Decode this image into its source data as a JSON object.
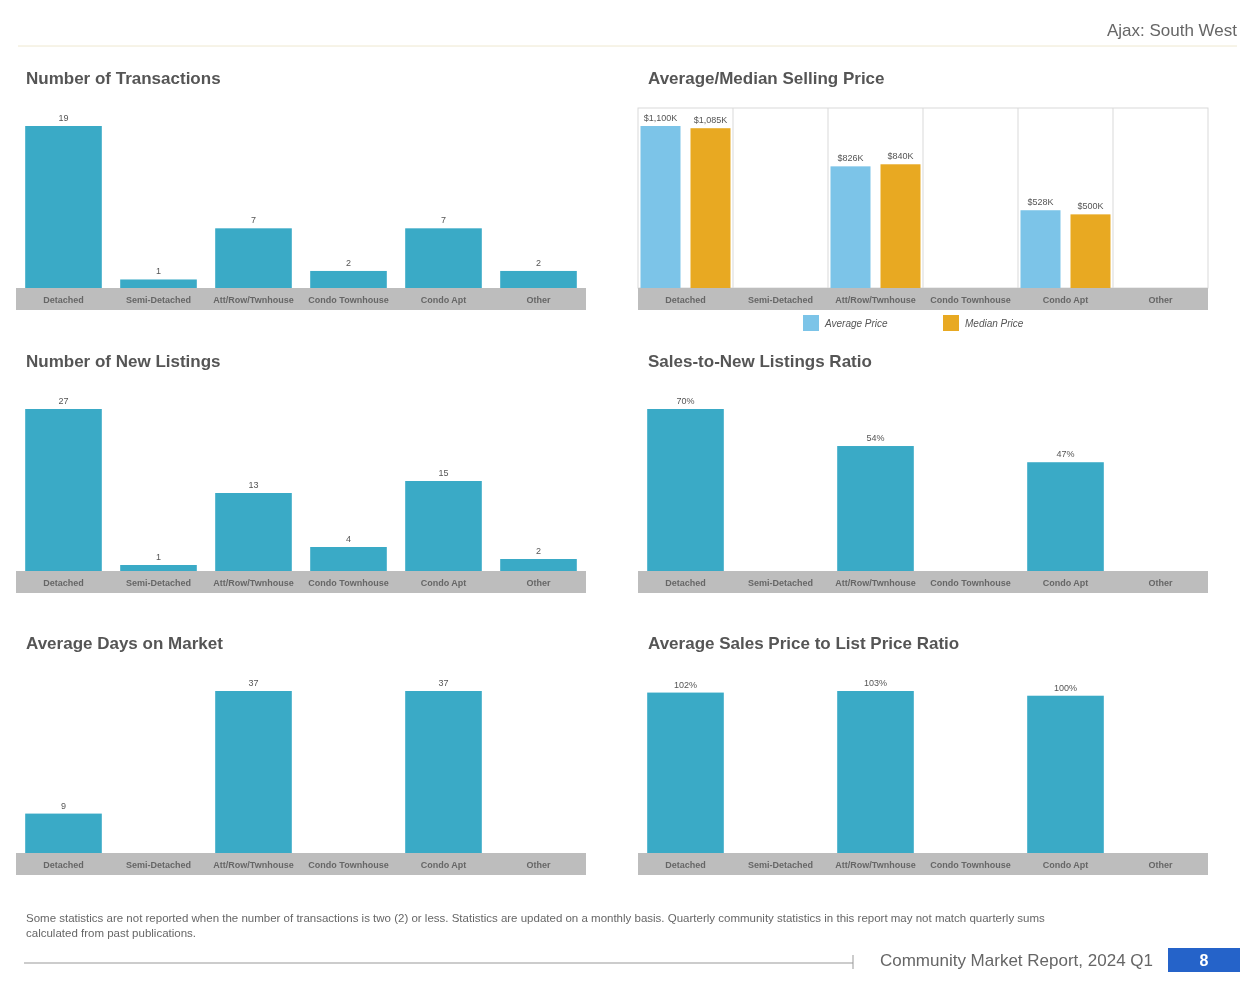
{
  "chart_data": [
    {
      "type": "bar",
      "title": "Number of Transactions",
      "categories": [
        "Detached",
        "Semi-Detached",
        "Att/Row/Twnhouse",
        "Condo Townhouse",
        "Condo Apt",
        "Other"
      ],
      "data_labels": true,
      "series": [
        {
          "color": "#3aaac6",
          "values": [
            19,
            1,
            7,
            2,
            7,
            2
          ]
        }
      ]
    },
    {
      "type": "bar",
      "title": "Average/Median Selling Price",
      "categories": [
        "Detached",
        "Semi-Detached",
        "Att/Row/Twnhouse",
        "Condo Townhouse",
        "Condo Apt",
        "Other"
      ],
      "grid": "x",
      "legend": "bottom",
      "series": [
        {
          "name": "Average Price",
          "color": "#7cc4e8",
          "values": [
            1100,
            null,
            826,
            null,
            528,
            null
          ],
          "value_labels": [
            "$1,100K",
            null,
            "$826K",
            null,
            "$528K",
            null
          ]
        },
        {
          "name": "Median Price",
          "color": "#e8a922",
          "values": [
            1085,
            null,
            840,
            null,
            500,
            null
          ],
          "value_labels": [
            "$1,085K",
            null,
            "$840K",
            null,
            "$500K",
            null
          ]
        }
      ]
    },
    {
      "type": "bar",
      "title": "Number of New Listings",
      "categories": [
        "Detached",
        "Semi-Detached",
        "Att/Row/Twnhouse",
        "Condo Townhouse",
        "Condo Apt",
        "Other"
      ],
      "data_labels": true,
      "series": [
        {
          "color": "#3aaac6",
          "values": [
            27,
            1,
            13,
            4,
            15,
            2
          ]
        }
      ]
    },
    {
      "type": "bar",
      "title": "Sales-to-New Listings Ratio",
      "categories": [
        "Detached",
        "Semi-Detached",
        "Att/Row/Twnhouse",
        "Condo Townhouse",
        "Condo Apt",
        "Other"
      ],
      "series": [
        {
          "color": "#3aaac6",
          "values": [
            70,
            null,
            54,
            null,
            47,
            null
          ],
          "value_labels": [
            "70%",
            null,
            "54%",
            null,
            "47%",
            null
          ]
        }
      ]
    },
    {
      "type": "bar",
      "title": "Average Days on Market",
      "categories": [
        "Detached",
        "Semi-Detached",
        "Att/Row/Twnhouse",
        "Condo Townhouse",
        "Condo Apt",
        "Other"
      ],
      "data_labels": true,
      "series": [
        {
          "color": "#3aaac6",
          "values": [
            9,
            null,
            37,
            null,
            37,
            null
          ]
        }
      ]
    },
    {
      "type": "bar",
      "title": "Average Sales Price to List Price Ratio",
      "categories": [
        "Detached",
        "Semi-Detached",
        "Att/Row/Twnhouse",
        "Condo Townhouse",
        "Condo Apt",
        "Other"
      ],
      "series": [
        {
          "color": "#3aaac6",
          "values": [
            102,
            null,
            103,
            null,
            100,
            null
          ],
          "value_labels": [
            "102%",
            null,
            "103%",
            null,
            "100%",
            null
          ]
        }
      ]
    },
    {
      "type": "other",
      "title": "Ajax: South West",
      "annotations": [
        "Some statistics are not reported when the number of transactions is two (2) or less. Statistics are updated on a monthly basis. Quarterly community statistics in this report may not match quarterly sums calculated from past publications.",
        "Community Market Report, 2024 Q1",
        "8"
      ]
    }
  ]
}
